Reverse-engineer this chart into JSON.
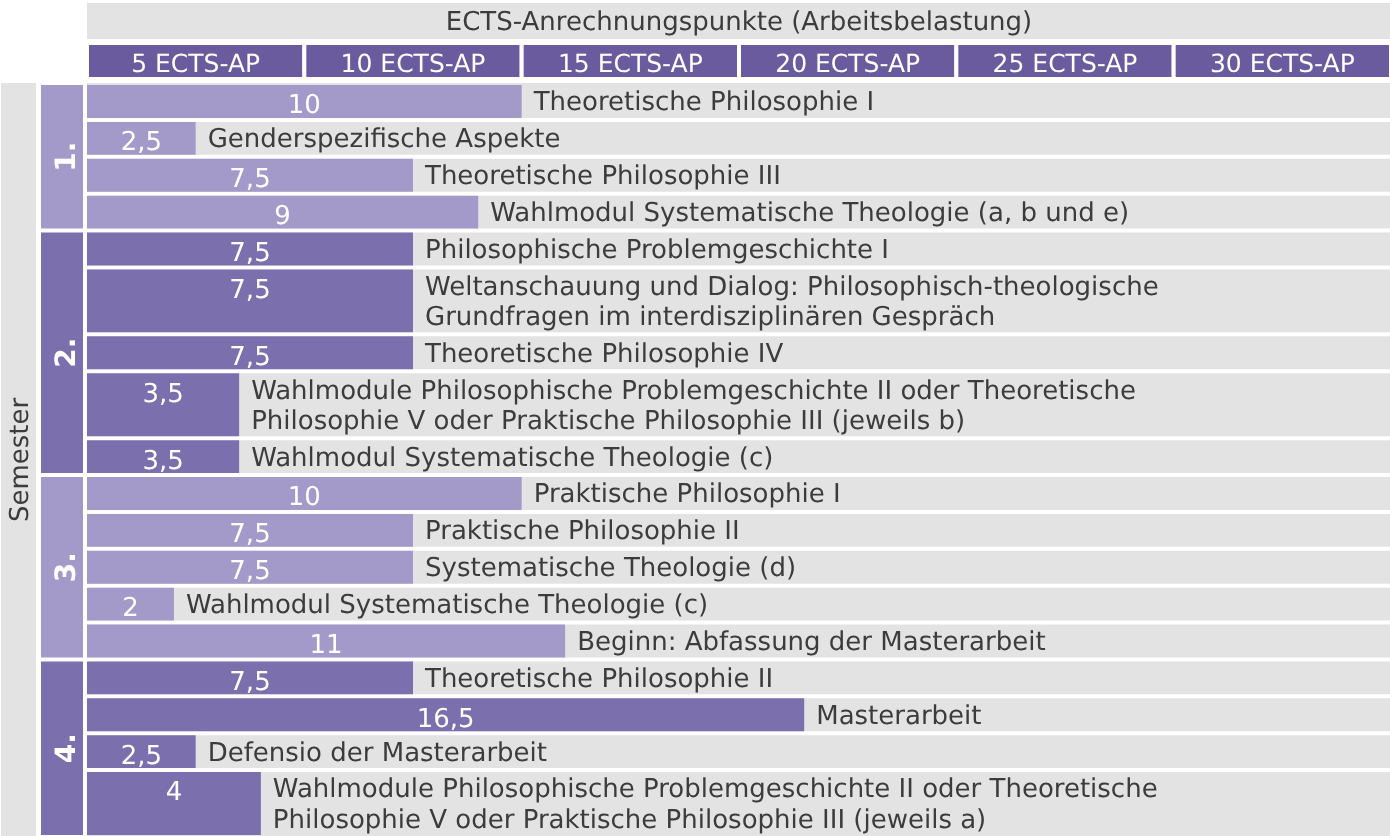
{
  "chart_data": {
    "type": "bar",
    "orientation": "horizontal",
    "xlabel": "ECTS-Anrechnungspunkte (Arbeitsbelastung)",
    "ylabel": "Semester",
    "categories": [
      "Theoretische Philosophie I",
      "Genderspezifische Aspekte",
      "Theoretische Philosophie III",
      "Wahlmodul Systematische Theologie (a, b und e)",
      "Philosophische Problemgeschichte I",
      "Weltanschauung und Dialog: Philosophisch-theologische Grundfragen im interdisziplinären Gespräch",
      "Theoretische Philosophie IV",
      "Wahlmodule Philosophische Problemgeschichte II oder Theoretische Philosophie V oder Praktische Philosophie III (jeweils b)",
      "Wahlmodul Systematische Theologie (c)",
      "Praktische Philosophie I",
      "Praktische Philosophie II",
      "Systematische Theologie (d)",
      "Wahlmodul Systematische Theologie (c)",
      "Beginn: Abfassung der Masterarbeit",
      "Theoretische Philosophie II",
      "Masterarbeit",
      "Defensio der Masterarbeit",
      "Wahlmodule Philosophische Problemgeschichte II oder Theoretische Philosophie V oder Praktische Philosophie III (jeweils a)"
    ],
    "series": [
      {
        "name": "1.",
        "color": "#a39ac9",
        "values": [
          10,
          2.5,
          7.5,
          9,
          null,
          null,
          null,
          null,
          null,
          null,
          null,
          null,
          null,
          null,
          null,
          null,
          null,
          null
        ],
        "value_labels": [
          "10",
          "2,5",
          "7,5",
          "9",
          null,
          null,
          null,
          null,
          null,
          null,
          null,
          null,
          null,
          null,
          null,
          null,
          null,
          null
        ]
      },
      {
        "name": "2.",
        "color": "#7b70ad",
        "values": [
          null,
          null,
          null,
          null,
          7.5,
          7.5,
          7.5,
          3.5,
          3.5,
          null,
          null,
          null,
          null,
          null,
          null,
          null,
          null,
          null
        ],
        "value_labels": [
          null,
          null,
          null,
          null,
          "7,5",
          "7,5",
          "7,5",
          "3,5",
          "3,5",
          null,
          null,
          null,
          null,
          null,
          null,
          null,
          null,
          null
        ]
      },
      {
        "name": "3.",
        "color": "#a39ac9",
        "values": [
          null,
          null,
          null,
          null,
          null,
          null,
          null,
          null,
          null,
          10,
          7.5,
          7.5,
          2,
          11,
          null,
          null,
          null,
          null
        ],
        "value_labels": [
          null,
          null,
          null,
          null,
          null,
          null,
          null,
          null,
          null,
          "10",
          "7,5",
          "7,5",
          "2",
          "11",
          null,
          null,
          null,
          null
        ]
      },
      {
        "name": "4.",
        "color": "#7b70ad",
        "values": [
          null,
          null,
          null,
          null,
          null,
          null,
          null,
          null,
          null,
          null,
          null,
          null,
          null,
          null,
          7.5,
          16.5,
          2.5,
          4
        ],
        "value_labels": [
          null,
          null,
          null,
          null,
          null,
          null,
          null,
          null,
          null,
          null,
          null,
          null,
          null,
          null,
          "7,5",
          "16,5",
          "2,5",
          "4"
        ]
      }
    ],
    "xlim": [
      0,
      30
    ],
    "annotations": [
      "5 ECTS-AP",
      "10 ECTS-AP",
      "15 ECTS-AP",
      "20 ECTS-AP",
      "25 ECTS-AP",
      "30 ECTS-AP"
    ],
    "grid": "y"
  }
}
